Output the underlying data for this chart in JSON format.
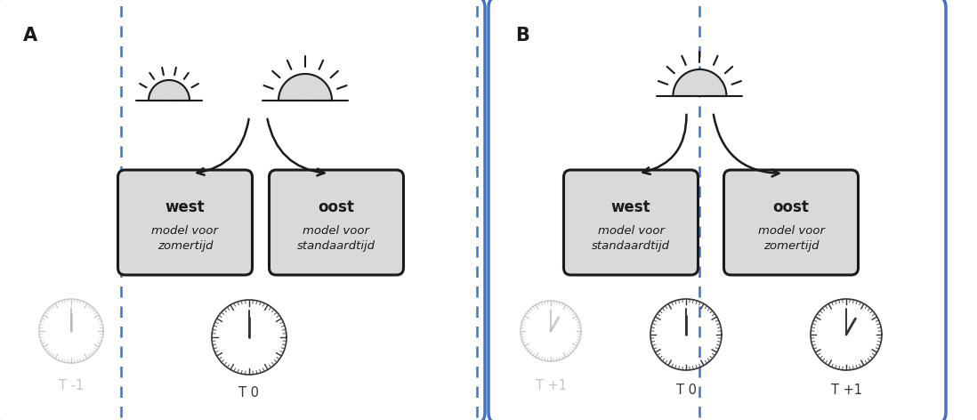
{
  "panel_A_label": "A",
  "panel_B_label": "B",
  "panel_A_west_title": "west",
  "panel_A_west_sub": "model voor\nzomertijd",
  "panel_A_oost_title": "oost",
  "panel_A_oost_sub": "model voor\nstandaardtijd",
  "panel_B_west_title": "west",
  "panel_B_west_sub": "model voor\nstandaardtijd",
  "panel_B_oost_title": "oost",
  "panel_B_oost_sub": "model voor\nzomertijd",
  "outer_box_color": "#4472C4",
  "box_fill": "#d9d9d9",
  "box_edge": "#1a1a1a",
  "arrow_color": "#1a1a1a",
  "dashed_line_color": "#4472C4",
  "background": "#ffffff",
  "faded_color": "#b0b0b0",
  "sun_fill": "#d9d9d9",
  "sun_edge": "#1a1a1a",
  "figw": 10.98,
  "figh": 4.72
}
